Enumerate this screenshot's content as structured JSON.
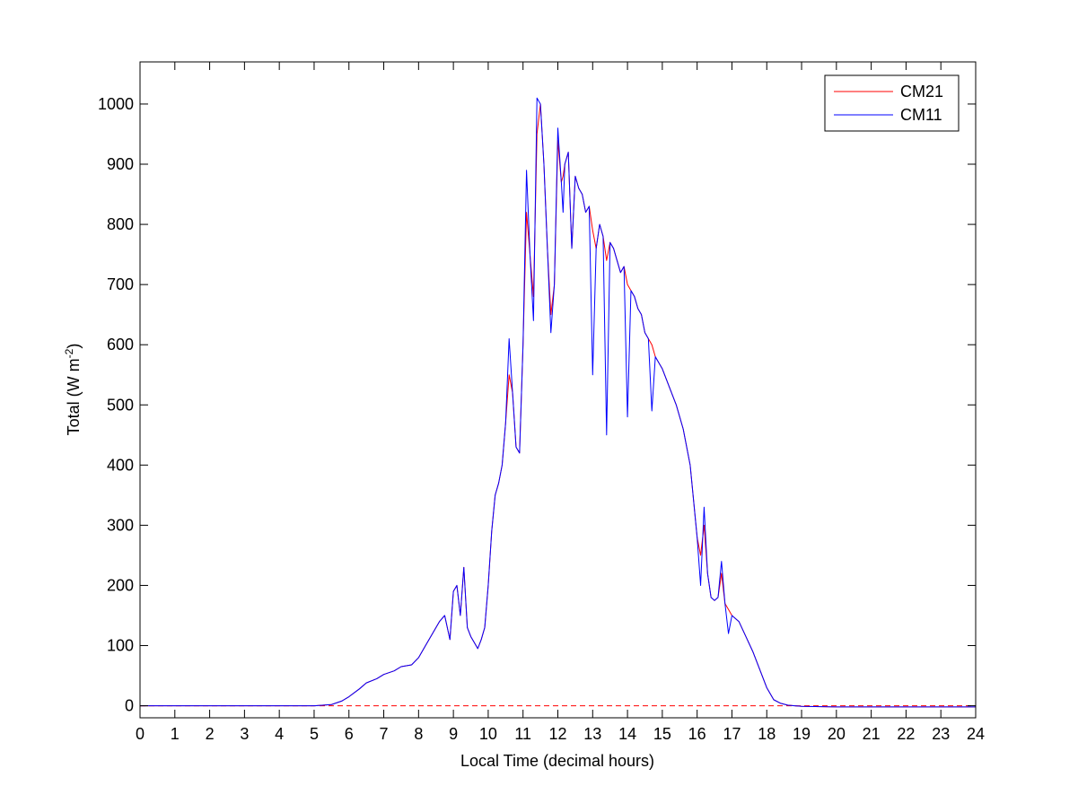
{
  "chart_data": {
    "type": "line",
    "xlabel": "Local Time (decimal hours)",
    "ylabel": {
      "prefix": "Total (W m",
      "superscript": "-2",
      "suffix": ")"
    },
    "xlim": [
      0,
      24
    ],
    "ylim": [
      -20,
      1070
    ],
    "xticks": [
      0,
      1,
      2,
      3,
      4,
      5,
      6,
      7,
      8,
      9,
      10,
      11,
      12,
      13,
      14,
      15,
      16,
      17,
      18,
      19,
      20,
      21,
      22,
      23,
      24
    ],
    "yticks": [
      0,
      100,
      200,
      300,
      400,
      500,
      600,
      700,
      800,
      900,
      1000
    ],
    "grid": false,
    "legend_position": "top-right",
    "reference_line": {
      "y": 0,
      "style": "dashed",
      "color": "#ff0000"
    },
    "series": [
      {
        "name": "CM21",
        "color": "#ff0000",
        "x": [
          0,
          5.0,
          5.5,
          5.8,
          6.0,
          6.3,
          6.5,
          6.8,
          7.0,
          7.3,
          7.5,
          7.8,
          8.0,
          8.2,
          8.4,
          8.6,
          8.75,
          8.9,
          9.0,
          9.1,
          9.2,
          9.3,
          9.4,
          9.5,
          9.6,
          9.7,
          9.8,
          9.9,
          10.0,
          10.1,
          10.2,
          10.3,
          10.4,
          10.5,
          10.6,
          10.7,
          10.8,
          10.9,
          11.0,
          11.1,
          11.2,
          11.3,
          11.4,
          11.5,
          11.6,
          11.7,
          11.8,
          11.9,
          12.0,
          12.1,
          12.15,
          12.2,
          12.3,
          12.4,
          12.5,
          12.6,
          12.7,
          12.8,
          12.9,
          13.0,
          13.1,
          13.2,
          13.3,
          13.4,
          13.5,
          13.6,
          13.7,
          13.8,
          13.9,
          14.0,
          14.1,
          14.2,
          14.3,
          14.4,
          14.5,
          14.6,
          14.7,
          14.8,
          14.9,
          15.0,
          15.2,
          15.4,
          15.6,
          15.8,
          16.0,
          16.1,
          16.2,
          16.3,
          16.4,
          16.5,
          16.6,
          16.7,
          16.8,
          16.9,
          17.0,
          17.2,
          17.4,
          17.6,
          17.8,
          18.0,
          18.2,
          18.4,
          18.6,
          18.8,
          19.0,
          20.0,
          21.0,
          22.0,
          23.0,
          24.0
        ],
        "y": [
          0,
          0,
          2,
          8,
          15,
          28,
          38,
          45,
          52,
          58,
          65,
          68,
          80,
          100,
          120,
          140,
          150,
          110,
          190,
          200,
          150,
          230,
          130,
          115,
          105,
          95,
          110,
          130,
          200,
          290,
          350,
          370,
          400,
          470,
          550,
          520,
          430,
          420,
          600,
          820,
          750,
          680,
          950,
          1000,
          900,
          760,
          650,
          700,
          940,
          870,
          880,
          900,
          920,
          760,
          880,
          860,
          850,
          820,
          830,
          790,
          760,
          800,
          780,
          740,
          770,
          760,
          740,
          720,
          730,
          700,
          690,
          680,
          660,
          650,
          620,
          610,
          600,
          580,
          570,
          560,
          530,
          500,
          460,
          400,
          280,
          250,
          300,
          220,
          180,
          175,
          180,
          220,
          170,
          160,
          150,
          140,
          115,
          90,
          60,
          30,
          10,
          4,
          1,
          0,
          -1,
          -2,
          -2,
          -2,
          -2,
          -2
        ]
      },
      {
        "name": "CM11",
        "color": "#0000ff",
        "x": [
          0,
          5.0,
          5.5,
          5.8,
          6.0,
          6.3,
          6.5,
          6.8,
          7.0,
          7.3,
          7.5,
          7.8,
          8.0,
          8.2,
          8.4,
          8.6,
          8.75,
          8.9,
          9.0,
          9.1,
          9.2,
          9.3,
          9.4,
          9.5,
          9.6,
          9.7,
          9.8,
          9.9,
          10.0,
          10.1,
          10.2,
          10.3,
          10.4,
          10.5,
          10.6,
          10.7,
          10.8,
          10.9,
          11.0,
          11.1,
          11.2,
          11.3,
          11.4,
          11.5,
          11.6,
          11.7,
          11.8,
          11.9,
          12.0,
          12.1,
          12.15,
          12.2,
          12.3,
          12.4,
          12.5,
          12.6,
          12.7,
          12.8,
          12.9,
          13.0,
          13.1,
          13.2,
          13.3,
          13.4,
          13.5,
          13.6,
          13.7,
          13.8,
          13.9,
          14.0,
          14.1,
          14.2,
          14.3,
          14.4,
          14.5,
          14.6,
          14.7,
          14.8,
          14.9,
          15.0,
          15.2,
          15.4,
          15.6,
          15.8,
          16.0,
          16.1,
          16.2,
          16.3,
          16.4,
          16.5,
          16.6,
          16.7,
          16.8,
          16.9,
          17.0,
          17.2,
          17.4,
          17.6,
          17.8,
          18.0,
          18.2,
          18.4,
          18.6,
          18.8,
          19.0,
          20.0,
          21.0,
          22.0,
          23.0,
          24.0
        ],
        "y": [
          0,
          0,
          2,
          8,
          15,
          28,
          38,
          45,
          52,
          58,
          65,
          68,
          80,
          100,
          120,
          140,
          150,
          110,
          190,
          200,
          150,
          230,
          130,
          115,
          105,
          95,
          110,
          130,
          200,
          290,
          350,
          370,
          400,
          470,
          610,
          520,
          430,
          420,
          600,
          890,
          750,
          640,
          1010,
          1000,
          900,
          760,
          620,
          700,
          960,
          870,
          820,
          900,
          920,
          760,
          880,
          860,
          850,
          820,
          830,
          550,
          760,
          800,
          780,
          450,
          770,
          760,
          740,
          720,
          730,
          480,
          690,
          680,
          660,
          650,
          620,
          610,
          490,
          580,
          570,
          560,
          530,
          500,
          460,
          400,
          280,
          200,
          330,
          220,
          180,
          175,
          180,
          240,
          170,
          120,
          150,
          140,
          115,
          90,
          60,
          30,
          10,
          4,
          1,
          0,
          -1,
          -2,
          -2,
          -2,
          -2,
          -2
        ]
      }
    ]
  }
}
